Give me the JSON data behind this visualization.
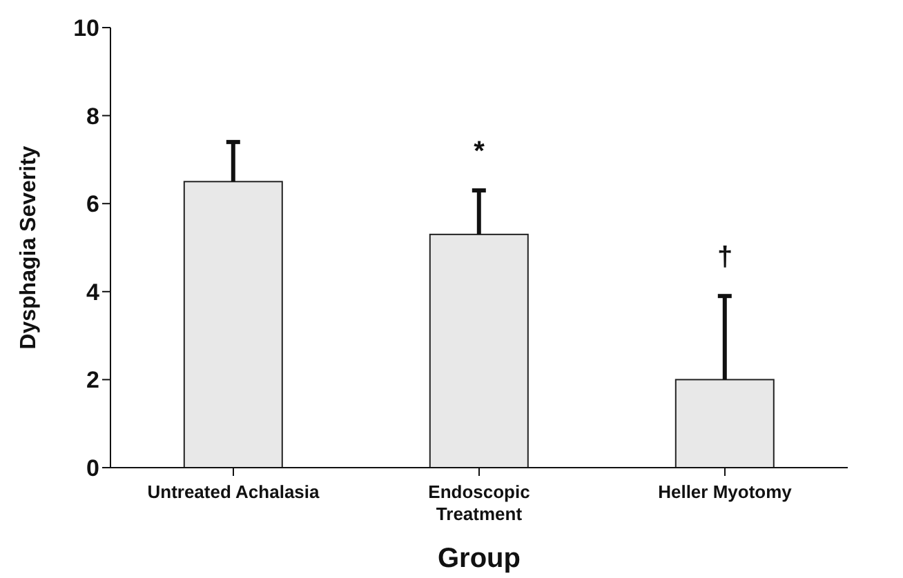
{
  "chart_data": {
    "type": "bar",
    "xlabel": "Group",
    "ylabel": "Dysphagia Severity",
    "categories": [
      "Untreated Achalasia",
      "Endoscopic Treatment",
      "Heller Myotomy"
    ],
    "values": [
      6.5,
      5.3,
      2.0
    ],
    "errors": [
      [
        6.5,
        7.4
      ],
      [
        5.3,
        6.3
      ],
      [
        2.0,
        3.9
      ]
    ],
    "color": "#e8e8e8",
    "ylim": [
      0,
      10
    ],
    "yticks": [
      0,
      2,
      4,
      6,
      8,
      10
    ],
    "grid": false,
    "annotations": [
      "*",
      "†"
    ]
  }
}
